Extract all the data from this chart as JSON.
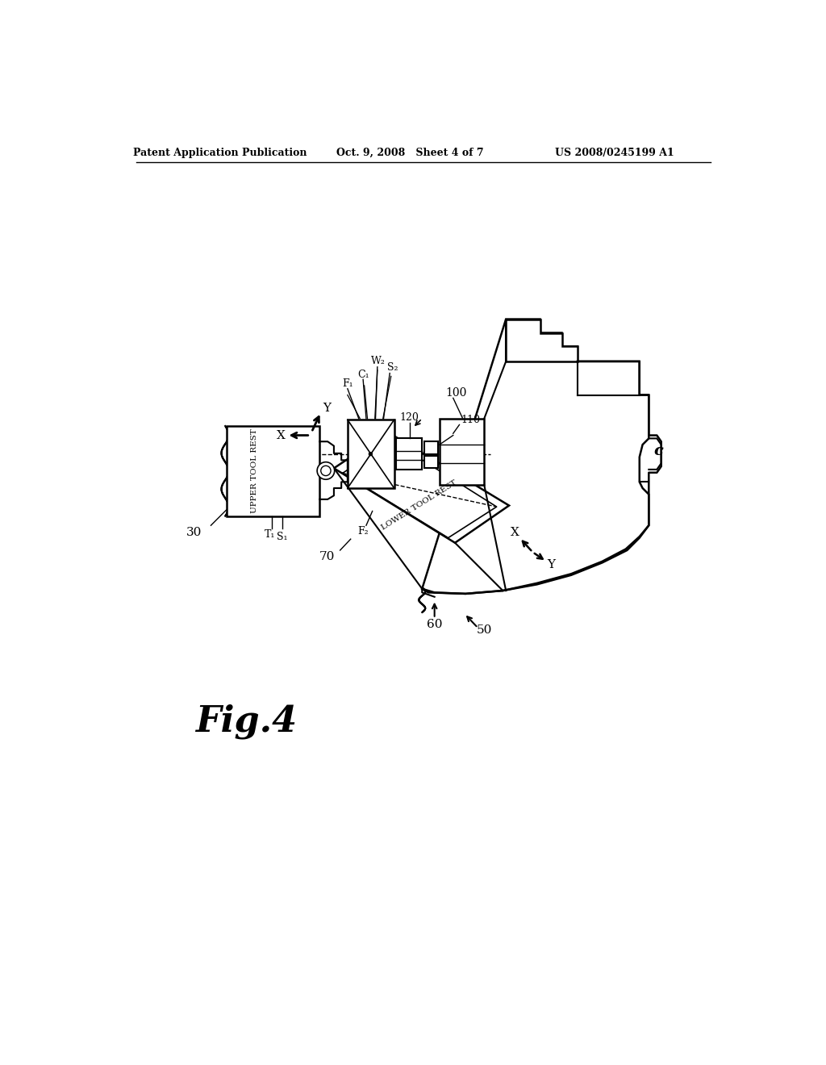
{
  "bg_color": "#ffffff",
  "line_color": "#000000",
  "header_left": "Patent Application Publication",
  "header_center": "Oct. 9, 2008   Sheet 4 of 7",
  "header_right": "US 2008/0245199 A1",
  "fig_label": "Fig.4"
}
